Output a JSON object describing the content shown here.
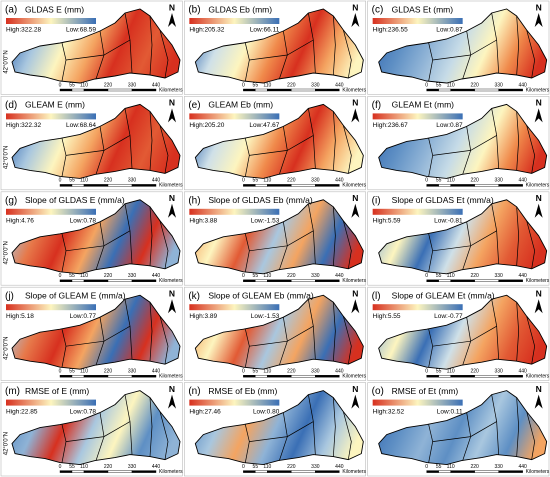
{
  "lat_label": "42°0'0\"N",
  "north": "N",
  "scale_labels": [
    "0",
    "55",
    "110",
    "220",
    "330",
    "440"
  ],
  "scale_unit": "Kilometers",
  "panels": [
    {
      "label": "(a)",
      "title": "GLDAS E (mm)",
      "high": "High:322.28",
      "low": "Low:68.59"
    },
    {
      "label": "(b)",
      "title": "GLDAS Eb (mm)",
      "high": "High:205.32",
      "low": "Low:66.11"
    },
    {
      "label": "(c)",
      "title": "GLDAS Et (mm)",
      "high": "High:236.55",
      "low": "Low:0.87"
    },
    {
      "label": "(d)",
      "title": "GLEAM E (mm)",
      "high": "High:322.32",
      "low": "Low:68.64"
    },
    {
      "label": "(e)",
      "title": "GLEAM Eb (mm)",
      "high": "High:205.20",
      "low": "Low:47.67"
    },
    {
      "label": "(f)",
      "title": "GLEAM Et (mm)",
      "high": "High:236.67",
      "low": "Low:0.87"
    },
    {
      "label": "(g)",
      "title": "Slope of GLDAS E (mm/a)",
      "high": "High:4.76",
      "low": "Low:0.78"
    },
    {
      "label": "(h)",
      "title": "Slope of GLDAS Eb (mm/a)",
      "high": "High:3.88",
      "low": "Low:-1.53"
    },
    {
      "label": "(i)",
      "title": "Slope of GLDAS Et (mm/a)",
      "high": "High:5.59",
      "low": "Low:-0.81"
    },
    {
      "label": "(j)",
      "title": "Slope of GLEAM E (mm/a)",
      "high": "High:5.18",
      "low": "Low:0.77"
    },
    {
      "label": "(k)",
      "title": "Slope of GLEAM Eb (mm/a)",
      "high": "High:3.89",
      "low": "Low:-1.53"
    },
    {
      "label": "(l)",
      "title": "Slope of GLEAM Et (mm/a)",
      "high": "High:5.55",
      "low": "Low:-0.77"
    },
    {
      "label": "(m)",
      "title": "RMSE of E (mm)",
      "high": "High:22.85",
      "low": "Low:0.78"
    },
    {
      "label": "(n)",
      "title": "RMSE of Eb (mm)",
      "high": "High:27.46",
      "low": "Low:0.80"
    },
    {
      "label": "(o)",
      "title": "RMSE of Et (mm)",
      "high": "High:32.52",
      "low": "Low:0.11"
    }
  ]
}
